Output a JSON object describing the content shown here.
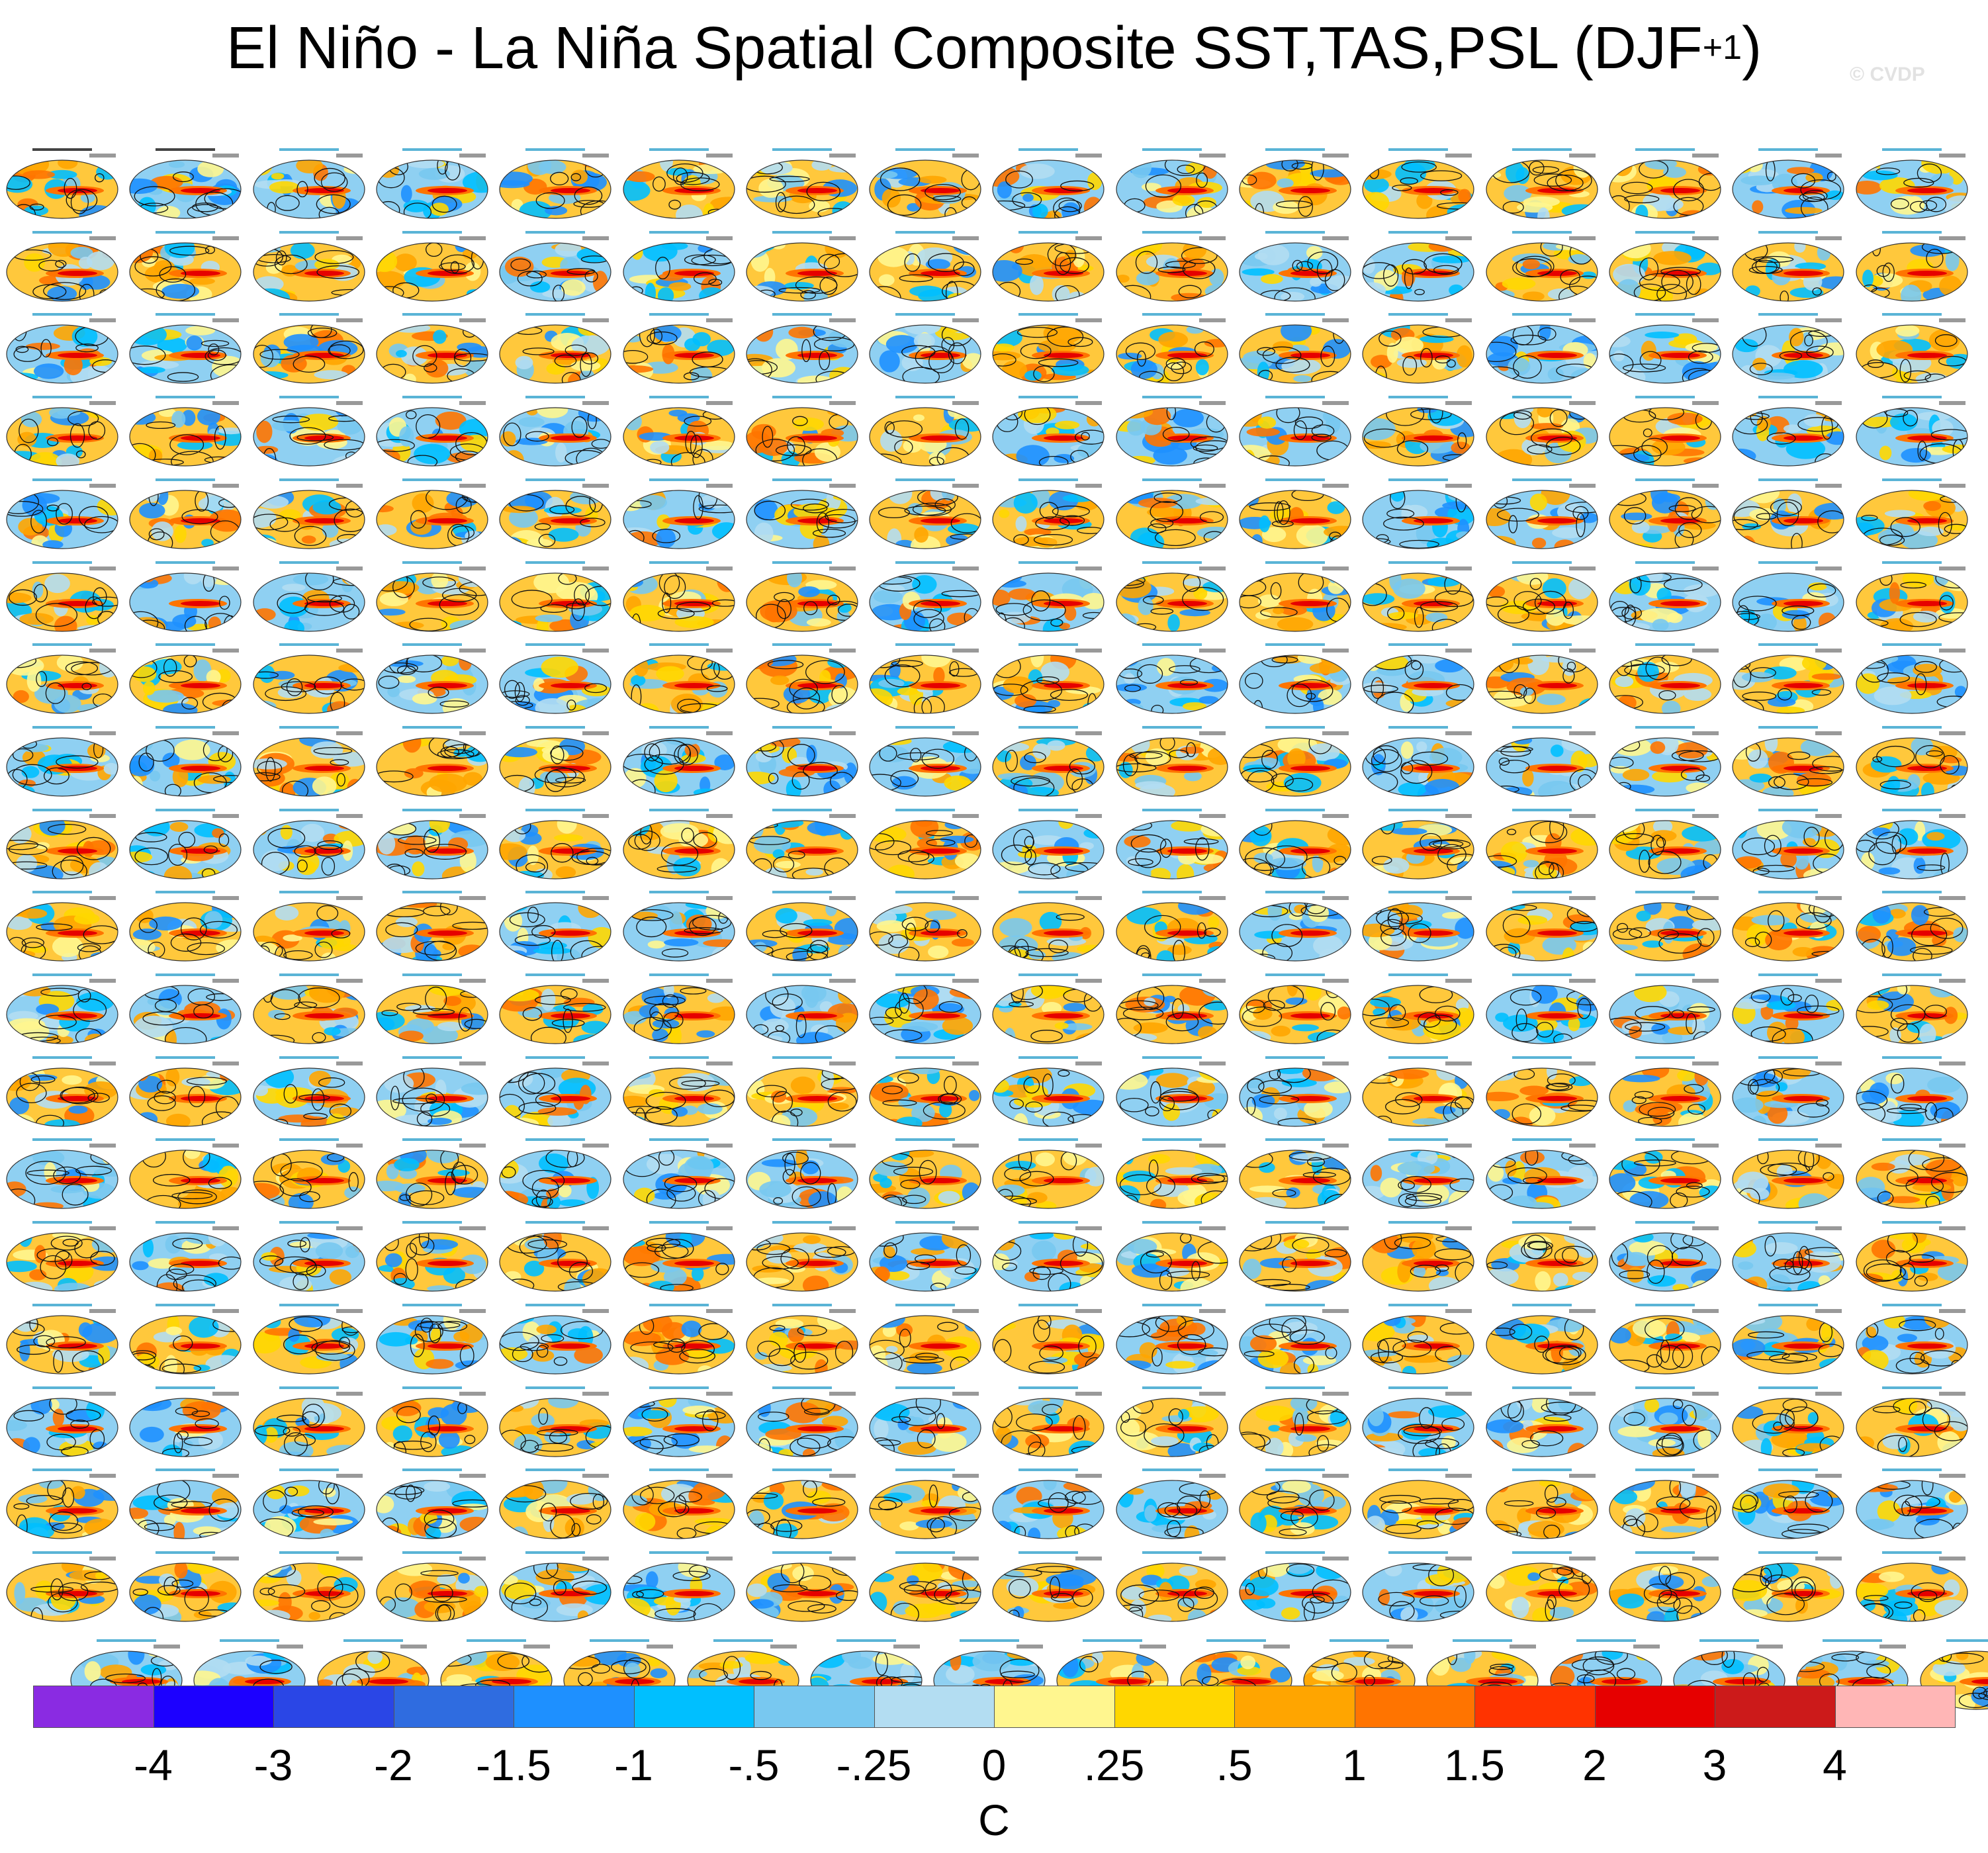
{
  "chart_data": {
    "type": "heatmap",
    "title_main": "El Niño - La Niña Spatial Composite SST,TAS,PSL (DJF",
    "title_sup": "+1",
    "title_close": ")",
    "watermark": "© CVDP",
    "panel_count": 304,
    "panel_layout": {
      "columns": 16,
      "full_rows": 18,
      "last_row_panels": 16
    },
    "colorbar": {
      "units": "C",
      "levels": [
        "-4",
        "-3",
        "-2",
        "-1.5",
        "-1",
        "-.5",
        "-.25",
        "0",
        ".25",
        ".5",
        "1",
        "1.5",
        "2",
        "3",
        "4"
      ],
      "colors": [
        "#8a2be2",
        "#1c00ff",
        "#2a46e6",
        "#2f6ce0",
        "#1e90ff",
        "#00bfff",
        "#78c8f0",
        "#b3ddf2",
        "#fff68f",
        "#ffd700",
        "#ffa500",
        "#ff7400",
        "#ff3300",
        "#e60000",
        "#cc1a1a",
        "#ffb6b6"
      ]
    }
  }
}
